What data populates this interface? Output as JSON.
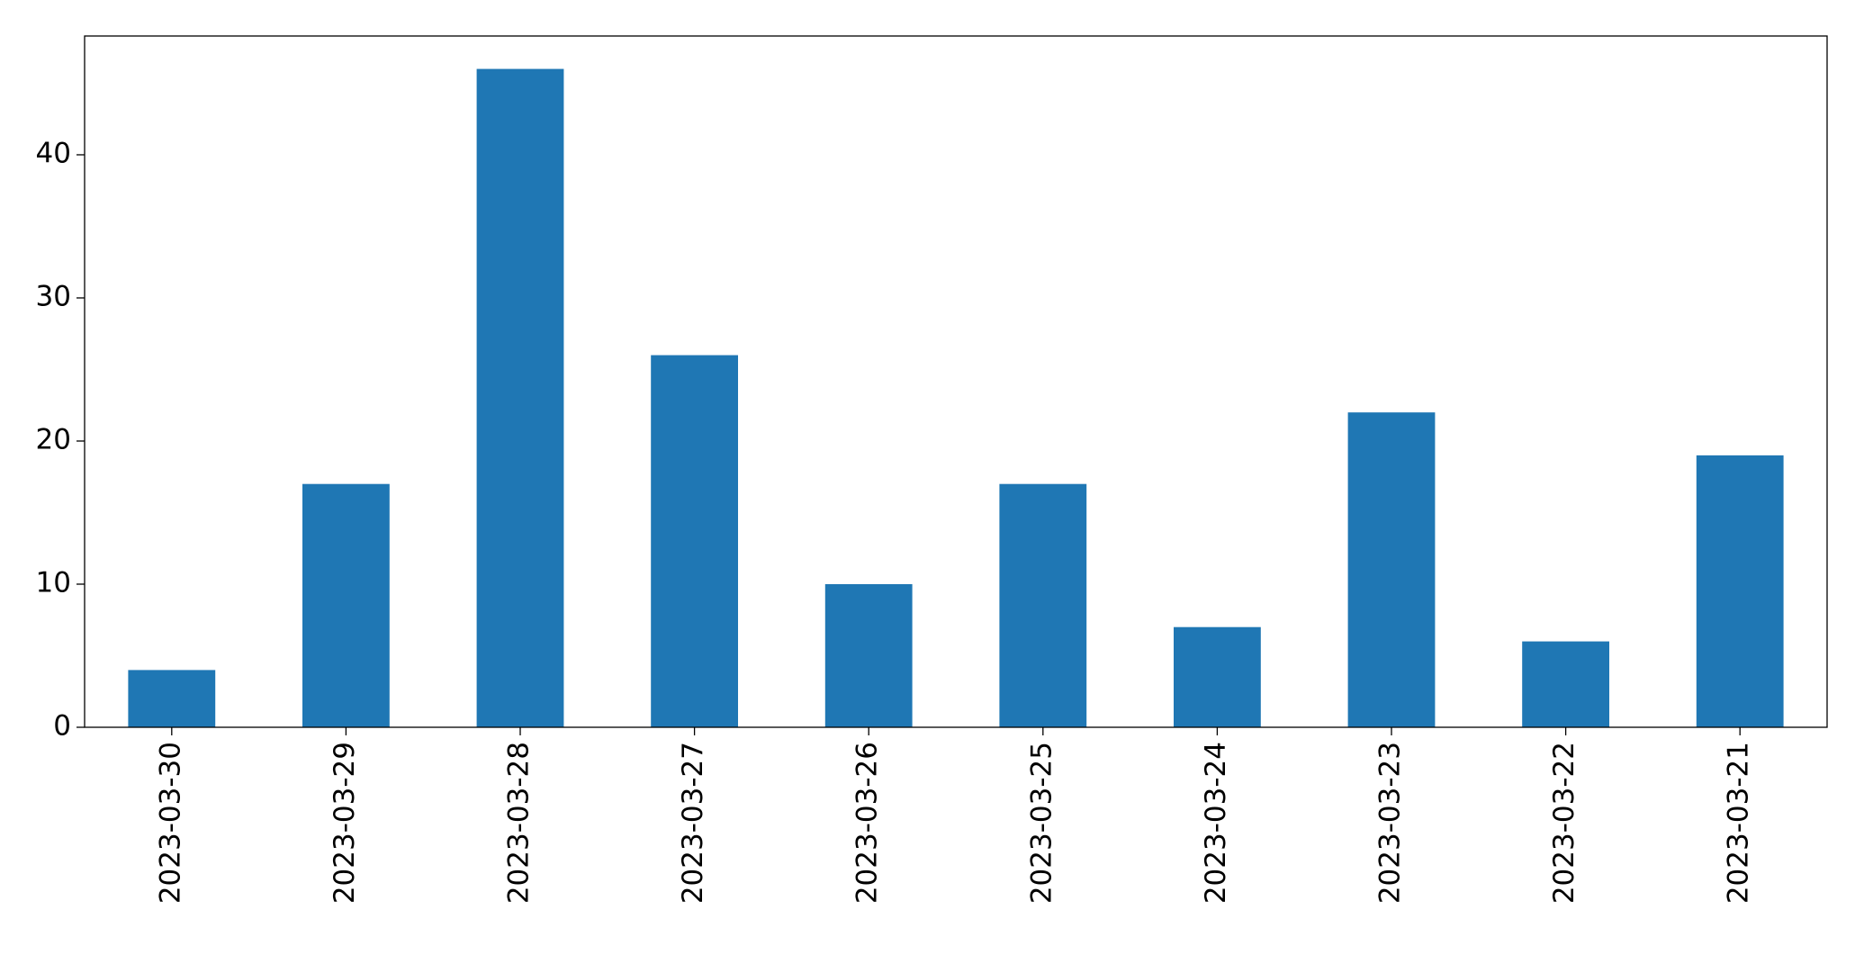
{
  "chart_data": {
    "type": "bar",
    "categories": [
      "2023-03-30",
      "2023-03-29",
      "2023-03-28",
      "2023-03-27",
      "2023-03-26",
      "2023-03-25",
      "2023-03-24",
      "2023-03-23",
      "2023-03-22",
      "2023-03-21"
    ],
    "values": [
      4,
      17,
      46,
      26,
      10,
      17,
      7,
      22,
      6,
      19
    ],
    "color": "#1f77b4",
    "ylim": [
      0,
      48.3
    ],
    "yticks": [
      0,
      10,
      20,
      30,
      40
    ],
    "grid": false
  }
}
